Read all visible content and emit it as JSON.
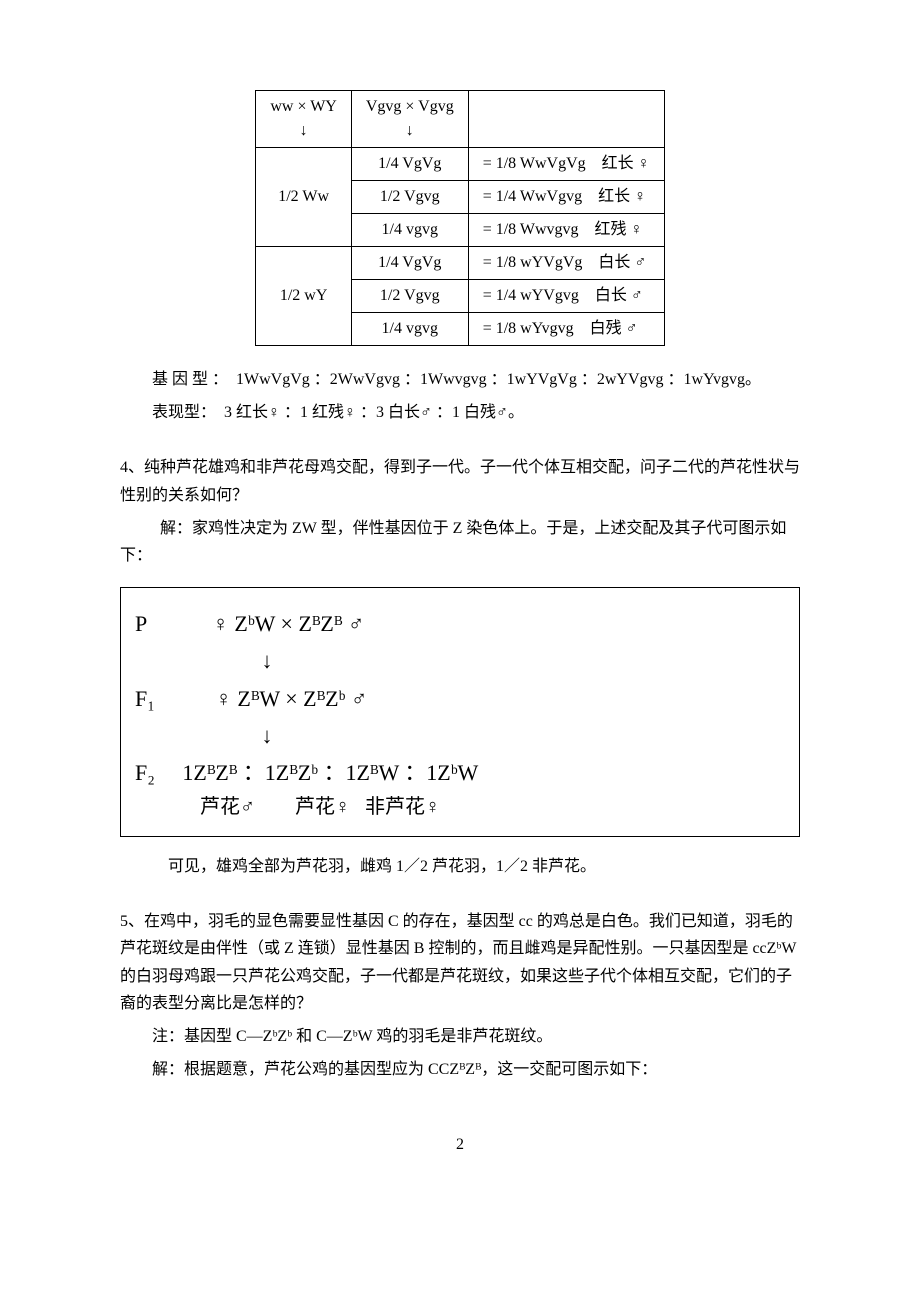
{
  "table": {
    "head": {
      "col1_top": "ww × WY",
      "col1_bot": "↓",
      "col2_top": "Vgvg × Vgvg",
      "col2_bot": "↓"
    },
    "group1": {
      "left": "1/2 Ww",
      "rows": [
        {
          "mid": "1/4 VgVg",
          "res": "= 1/8 WwVgVg　红长 ♀"
        },
        {
          "mid": "1/2 Vgvg",
          "res": "= 1/4 WwVgvg　红长 ♀"
        },
        {
          "mid": "1/4 vgvg",
          "res": "= 1/8 Wwvgvg　红残 ♀"
        }
      ]
    },
    "group2": {
      "left": "1/2 wY",
      "rows": [
        {
          "mid": "1/4 VgVg",
          "res": "= 1/8 wYVgVg　白长 ♂"
        },
        {
          "mid": "1/2 Vgvg",
          "res": "= 1/4 wYVgvg　白长 ♂"
        },
        {
          "mid": "1/4 vgvg",
          "res": "= 1/8 wYvgvg　白残 ♂"
        }
      ]
    }
  },
  "genotype_line": "基 因 型 ：　1WwVgVg ：2WwVgvg ：1Wwvgvg ：1wYVgVg ：2wYVgvg ：1wYvgvg。",
  "phenotype_line": "表现型：　3 红长♀ ：1 红残♀ ：3 白长♂ ：1 白残♂。",
  "q4": {
    "question": "4、纯种芦花雄鸡和非芦花母鸡交配，得到子一代。子一代个体互相交配，问子二代的芦花性状与性别的关系如何？",
    "answer": "解：家鸡性决定为 ZW 型，伴性基因位于 Z 染色体上。于是，上述交配及其子代可图示如下：",
    "box": {
      "p": "P            ♀ ZᵇW × ZᴮZᴮ ♂",
      "a1": "                       ↓",
      "f1": "F₁           ♀ ZᴮW × ZᴮZᵇ ♂",
      "a2": "                       ↓",
      "f2": "F₂     1ZᴮZᴮ ：1ZᴮZᵇ ：1ZᴮW ：1ZᵇW",
      "phen": "             芦花♂        芦花♀   非芦花♀"
    },
    "conclusion": "可见，雄鸡全部为芦花羽，雌鸡 1／2 芦花羽，1／2 非芦花。"
  },
  "q5": {
    "question": "5、在鸡中，羽毛的显色需要显性基因 C 的存在，基因型 cc 的鸡总是白色。我们已知道，羽毛的芦花斑纹是由伴性（或 Z 连锁）显性基因 B 控制的，而且雌鸡是异配性别。一只基因型是 ccZᵇW 的白羽母鸡跟一只芦花公鸡交配，子一代都是芦花斑纹，如果这些子代个体相互交配，它们的子裔的表型分离比是怎样的？",
    "note": "注：基因型 C—ZᵇZᵇ 和 C—ZᵇW 鸡的羽毛是非芦花斑纹。",
    "answer": "解：根据题意，芦花公鸡的基因型应为 CCZᴮZᴮ，这一交配可图示如下："
  },
  "page_number": "2"
}
